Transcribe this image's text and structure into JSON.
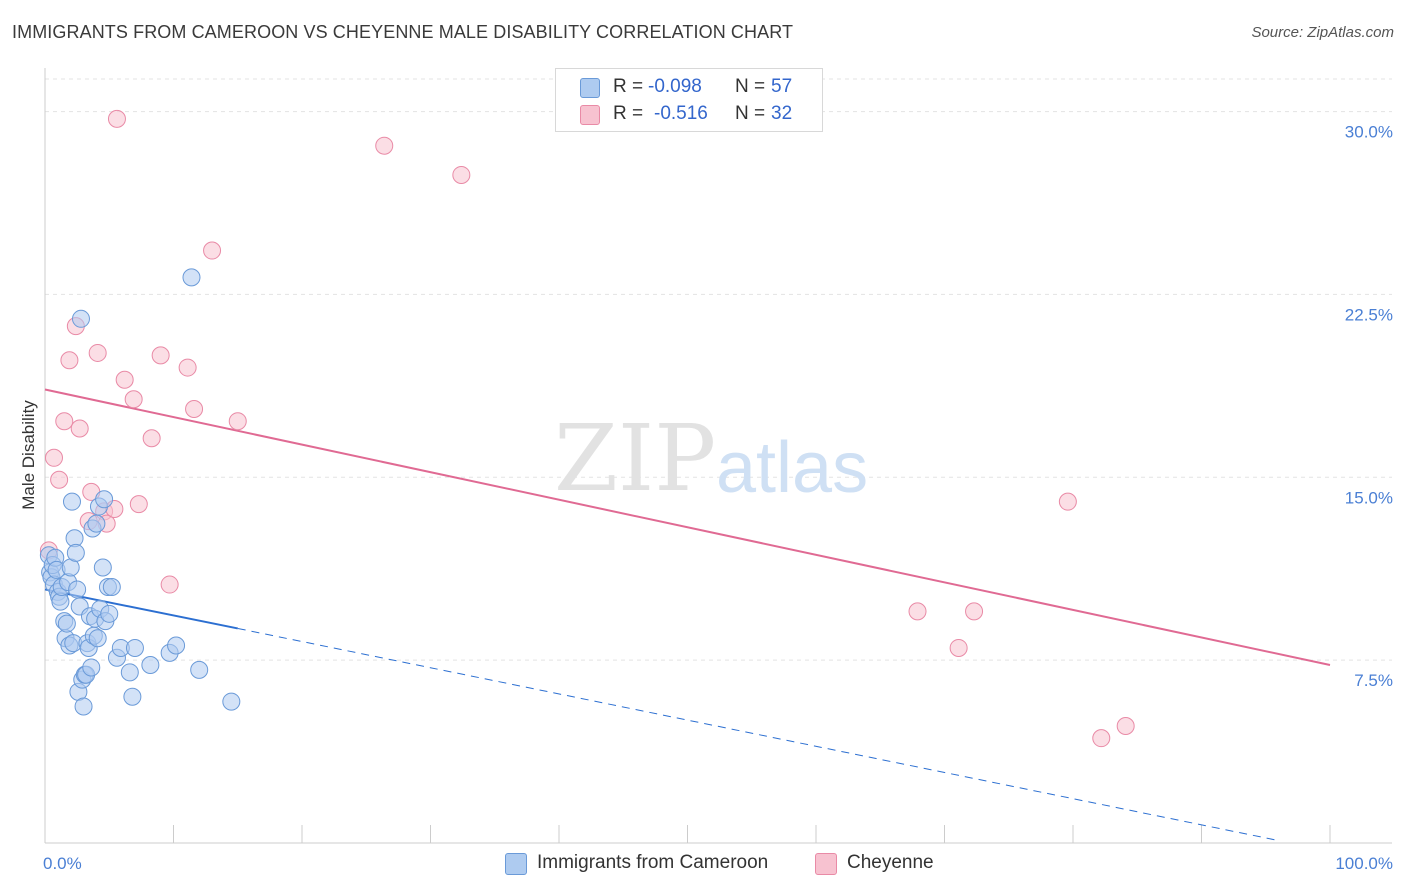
{
  "header": {
    "title": "IMMIGRANTS FROM CAMEROON VS CHEYENNE MALE DISABILITY CORRELATION CHART",
    "source": "Source: ZipAtlas.com"
  },
  "watermark": {
    "zip": "ZIP",
    "atlas": "atlas"
  },
  "legend": {
    "rows": [
      {
        "r_label": "R =",
        "r_value": "-0.098",
        "n_label": "N =",
        "n_value": "57"
      },
      {
        "r_label": "R =",
        "r_value": "-0.516",
        "n_label": "N =",
        "n_value": "32"
      }
    ]
  },
  "colors": {
    "blue_fill": "#aecbf0",
    "blue_stroke": "#6a9ad8",
    "blue_line": "#2c6fd1",
    "pink_fill": "#f7c2d0",
    "pink_stroke": "#e98aa6",
    "pink_line": "#e06a93",
    "grid": "#e3e3e3",
    "axis": "#cccccc",
    "tick_label": "#4a7fd4"
  },
  "chart_data": {
    "type": "scatter",
    "title": "IMMIGRANTS FROM CAMEROON VS CHEYENNE MALE DISABILITY CORRELATION CHART",
    "xlabel": "",
    "ylabel": "Male Disability",
    "xlim": [
      0,
      100
    ],
    "ylim": [
      0,
      31.5
    ],
    "x_tick_labels": [
      "0.0%",
      "100.0%"
    ],
    "y_ticks": [
      7.5,
      15.0,
      22.5,
      30.0
    ],
    "y_tick_labels": [
      "7.5%",
      "15.0%",
      "22.5%",
      "30.0%"
    ],
    "grid": true,
    "legend_position": "bottom-center",
    "series": [
      {
        "name": "Immigrants from Cameroon",
        "color": "#6a9ad8",
        "points": [
          [
            0.3,
            11.8
          ],
          [
            0.4,
            11.1
          ],
          [
            0.5,
            10.9
          ],
          [
            0.6,
            11.4
          ],
          [
            0.7,
            10.6
          ],
          [
            0.8,
            11.7
          ],
          [
            0.9,
            11.2
          ],
          [
            1.0,
            10.3
          ],
          [
            1.1,
            10.1
          ],
          [
            1.2,
            9.9
          ],
          [
            1.3,
            10.5
          ],
          [
            1.5,
            9.1
          ],
          [
            1.6,
            8.4
          ],
          [
            1.7,
            9.0
          ],
          [
            1.8,
            10.7
          ],
          [
            1.9,
            8.1
          ],
          [
            2.0,
            11.3
          ],
          [
            2.1,
            14.0
          ],
          [
            2.2,
            8.2
          ],
          [
            2.3,
            12.5
          ],
          [
            2.4,
            11.9
          ],
          [
            2.5,
            10.4
          ],
          [
            2.6,
            6.2
          ],
          [
            2.7,
            9.7
          ],
          [
            2.8,
            21.5
          ],
          [
            2.9,
            6.7
          ],
          [
            3.0,
            5.6
          ],
          [
            3.1,
            6.9
          ],
          [
            3.2,
            6.9
          ],
          [
            3.3,
            8.2
          ],
          [
            3.4,
            8.0
          ],
          [
            3.5,
            9.3
          ],
          [
            3.6,
            7.2
          ],
          [
            3.7,
            12.9
          ],
          [
            3.8,
            8.5
          ],
          [
            3.9,
            9.2
          ],
          [
            4.0,
            13.1
          ],
          [
            4.1,
            8.4
          ],
          [
            4.2,
            13.8
          ],
          [
            4.3,
            9.6
          ],
          [
            4.5,
            11.3
          ],
          [
            4.6,
            14.1
          ],
          [
            4.7,
            9.1
          ],
          [
            4.9,
            10.5
          ],
          [
            5.0,
            9.4
          ],
          [
            5.2,
            10.5
          ],
          [
            5.6,
            7.6
          ],
          [
            5.9,
            8.0
          ],
          [
            6.6,
            7.0
          ],
          [
            7.0,
            8.0
          ],
          [
            8.2,
            7.3
          ],
          [
            9.7,
            7.8
          ],
          [
            10.2,
            8.1
          ],
          [
            11.4,
            23.2
          ],
          [
            12.0,
            7.1
          ],
          [
            14.5,
            5.8
          ],
          [
            6.8,
            6.0
          ]
        ],
        "trend": {
          "x": [
            0,
            15
          ],
          "y": [
            10.4,
            8.8
          ]
        },
        "trend_extended": {
          "x": [
            15,
            96
          ],
          "y": [
            8.8,
            0.1
          ]
        }
      },
      {
        "name": "Cheyenne",
        "color": "#e98aa6",
        "points": [
          [
            0.3,
            12.0
          ],
          [
            0.7,
            15.8
          ],
          [
            1.1,
            14.9
          ],
          [
            1.5,
            17.3
          ],
          [
            1.9,
            19.8
          ],
          [
            2.4,
            21.2
          ],
          [
            2.7,
            17.0
          ],
          [
            3.4,
            13.2
          ],
          [
            3.6,
            14.4
          ],
          [
            4.1,
            20.1
          ],
          [
            4.6,
            13.6
          ],
          [
            4.8,
            13.1
          ],
          [
            5.4,
            13.7
          ],
          [
            5.6,
            29.7
          ],
          [
            6.2,
            19.0
          ],
          [
            6.9,
            18.2
          ],
          [
            7.3,
            13.9
          ],
          [
            8.3,
            16.6
          ],
          [
            9.0,
            20.0
          ],
          [
            9.7,
            10.6
          ],
          [
            11.1,
            19.5
          ],
          [
            11.6,
            17.8
          ],
          [
            13.0,
            24.3
          ],
          [
            15.0,
            17.3
          ],
          [
            26.4,
            28.6
          ],
          [
            32.4,
            27.4
          ],
          [
            67.9,
            9.5
          ],
          [
            71.1,
            8.0
          ],
          [
            72.3,
            9.5
          ],
          [
            79.6,
            14.0
          ],
          [
            82.2,
            4.3
          ],
          [
            84.1,
            4.8
          ]
        ],
        "trend": {
          "x": [
            0,
            100
          ],
          "y": [
            18.6,
            7.3
          ]
        }
      }
    ]
  },
  "bottom_legend": [
    {
      "label": "Immigrants from Cameroon"
    },
    {
      "label": "Cheyenne"
    }
  ]
}
